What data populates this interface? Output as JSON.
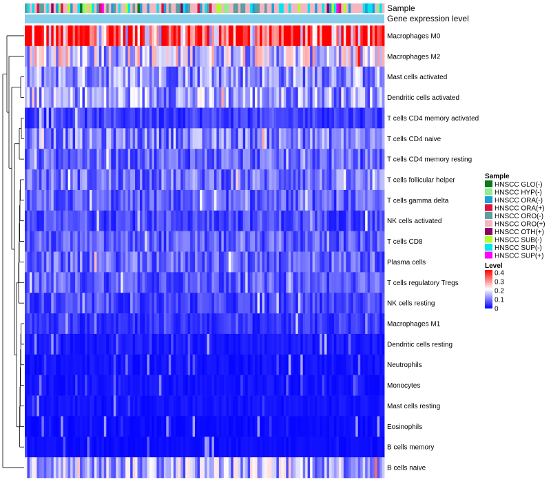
{
  "chart_data": {
    "type": "heatmap",
    "title": "",
    "annotation_labels": [
      "Sample",
      "Gene expression level"
    ],
    "rows": [
      {
        "name": "Macrophages M0",
        "mean": 0.34
      },
      {
        "name": "Macrophages M2",
        "mean": 0.17
      },
      {
        "name": "Mast cells activated",
        "mean": 0.12
      },
      {
        "name": "Dendritic cells activated",
        "mean": 0.13
      },
      {
        "name": "T cells CD4 memory activated",
        "mean": 0.05
      },
      {
        "name": "T cells CD4 naive",
        "mean": 0.1
      },
      {
        "name": "T cells CD4 memory resting",
        "mean": 0.08
      },
      {
        "name": "T cells follicular helper",
        "mean": 0.09
      },
      {
        "name": "T cells gamma delta",
        "mean": 0.07
      },
      {
        "name": "NK cells activated",
        "mean": 0.06
      },
      {
        "name": "T cells CD8",
        "mean": 0.07
      },
      {
        "name": "Plasma cells",
        "mean": 0.08
      },
      {
        "name": "T cells regulatory  Tregs",
        "mean": 0.07
      },
      {
        "name": "NK cells resting",
        "mean": 0.05
      },
      {
        "name": "Macrophages M1",
        "mean": 0.04
      },
      {
        "name": "Dendritic cells resting",
        "mean": 0.02
      },
      {
        "name": "Neutrophils",
        "mean": 0.015
      },
      {
        "name": "Monocytes",
        "mean": 0.015
      },
      {
        "name": "Mast cells resting",
        "mean": 0.015
      },
      {
        "name": "Eosinophils",
        "mean": 0.01
      },
      {
        "name": "B cells memory",
        "mean": 0.01
      },
      {
        "name": "B cells naive",
        "mean": 0.14
      }
    ],
    "n_samples": 150,
    "sample_legend": {
      "title": "Sample",
      "items": [
        {
          "label": "HNSCC GLO(-)",
          "color": "#0a7a1a"
        },
        {
          "label": "HNSCC HYP(-)",
          "color": "#90ee90"
        },
        {
          "label": "HNSCC ORA(-)",
          "color": "#1e9fd8"
        },
        {
          "label": "HNSCC ORA(+)",
          "color": "#dc143c"
        },
        {
          "label": "HNSCC ORO(-)",
          "color": "#5f9ea0"
        },
        {
          "label": "HNSCC ORO(+)",
          "color": "#f4b6c2"
        },
        {
          "label": "HNSCC OTH(+)",
          "color": "#8b0060"
        },
        {
          "label": "HNSCC SUB(-)",
          "color": "#adff2f"
        },
        {
          "label": "HNSCC SUP(-)",
          "color": "#00e5ee"
        },
        {
          "label": "HNSCC SUP(+)",
          "color": "#ff00ff"
        }
      ]
    },
    "level_legend": {
      "title": "Level",
      "ticks": [
        0.4,
        0.3,
        0.2,
        0.1,
        0
      ],
      "range": [
        0,
        0.4
      ],
      "colors": [
        "#0000ff",
        "#ffffff",
        "#ff0000"
      ]
    },
    "gene_expression_color": "#87ceeb"
  }
}
